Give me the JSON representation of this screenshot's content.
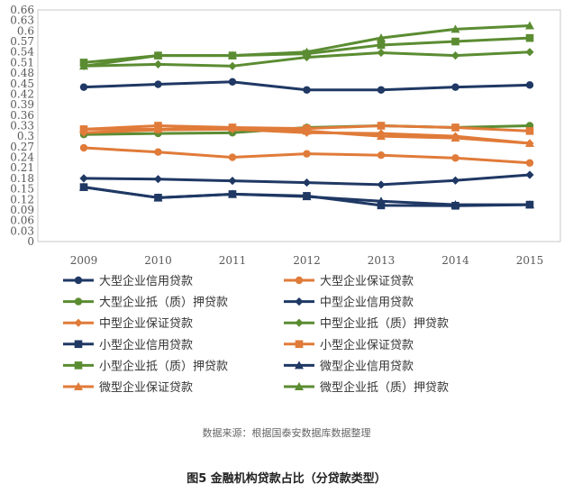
{
  "source_note": "数据来源：根据国泰安数据库数据整理",
  "caption": "图5 金融机构贷款占比（分贷款类型）",
  "chart_data": {
    "type": "line",
    "title": "",
    "xlabel": "",
    "ylabel": "",
    "x": [
      "2009",
      "2010",
      "2011",
      "2012",
      "2013",
      "2014",
      "2015"
    ],
    "ylim": [
      0,
      0.66
    ],
    "yticks": [
      0,
      0.03,
      0.06,
      0.09,
      0.12,
      0.15,
      0.18,
      0.21,
      0.24,
      0.27,
      0.3,
      0.33,
      0.36,
      0.39,
      0.42,
      0.45,
      0.48,
      0.51,
      0.54,
      0.57,
      0.6,
      0.63,
      0.66
    ],
    "ytick_labels": [
      "0",
      "0.03",
      "0.06",
      "0.09",
      "0.12",
      "0.15",
      "0.18",
      "0.21",
      "0.24",
      "0.27",
      "0.3",
      "0.33",
      "0.36",
      "0.39",
      "0.42",
      "0.45",
      "0.48",
      "0.51",
      "0.54",
      "0.57",
      "0.6",
      "0.63",
      "0.66"
    ],
    "grid": false,
    "legend_position": "bottom",
    "series": [
      {
        "name": "大型企业信用贷款",
        "color": "#1f3864",
        "marker": "circle",
        "values": [
          0.44,
          0.448,
          0.455,
          0.432,
          0.432,
          0.44,
          0.446
        ]
      },
      {
        "name": "大型企业保证贷款",
        "color": "#e07b39",
        "marker": "circle",
        "values": [
          0.267,
          0.255,
          0.24,
          0.25,
          0.246,
          0.238,
          0.224
        ]
      },
      {
        "name": "大型企业抵（质）押贷款",
        "color": "#5b8c32",
        "marker": "circle",
        "values": [
          0.305,
          0.308,
          0.31,
          0.325,
          0.33,
          0.325,
          0.33
        ]
      },
      {
        "name": "中型企业信用贷款",
        "color": "#1f3864",
        "marker": "diamond",
        "values": [
          0.18,
          0.178,
          0.173,
          0.168,
          0.162,
          0.174,
          0.19
        ]
      },
      {
        "name": "中型企业保证贷款",
        "color": "#e07b39",
        "marker": "diamond",
        "values": [
          0.31,
          0.318,
          0.32,
          0.31,
          0.308,
          0.3,
          0.28
        ]
      },
      {
        "name": "中型企业抵（质）押贷款",
        "color": "#5b8c32",
        "marker": "diamond",
        "values": [
          0.5,
          0.505,
          0.5,
          0.525,
          0.538,
          0.53,
          0.54
        ]
      },
      {
        "name": "小型企业信用贷款",
        "color": "#1f3864",
        "marker": "square",
        "values": [
          0.155,
          0.125,
          0.135,
          0.13,
          0.103,
          0.102,
          0.105
        ]
      },
      {
        "name": "小型企业保证贷款",
        "color": "#e07b39",
        "marker": "square",
        "values": [
          0.32,
          0.33,
          0.325,
          0.322,
          0.33,
          0.325,
          0.315
        ]
      },
      {
        "name": "小型企业抵（质）押贷款",
        "color": "#5b8c32",
        "marker": "square",
        "values": [
          0.51,
          0.53,
          0.53,
          0.535,
          0.56,
          0.57,
          0.58
        ]
      },
      {
        "name": "微型企业信用贷款",
        "color": "#1f3864",
        "marker": "triangle",
        "values": [
          0.155,
          0.125,
          0.135,
          0.128,
          0.115,
          0.105,
          0.105
        ]
      },
      {
        "name": "微型企业保证贷款",
        "color": "#e07b39",
        "marker": "triangle",
        "values": [
          0.32,
          0.32,
          0.325,
          0.315,
          0.3,
          0.295,
          0.28
        ]
      },
      {
        "name": "微型企业抵（质）押贷款",
        "color": "#5b8c32",
        "marker": "triangle",
        "values": [
          0.5,
          0.53,
          0.53,
          0.54,
          0.58,
          0.605,
          0.615
        ]
      }
    ]
  }
}
